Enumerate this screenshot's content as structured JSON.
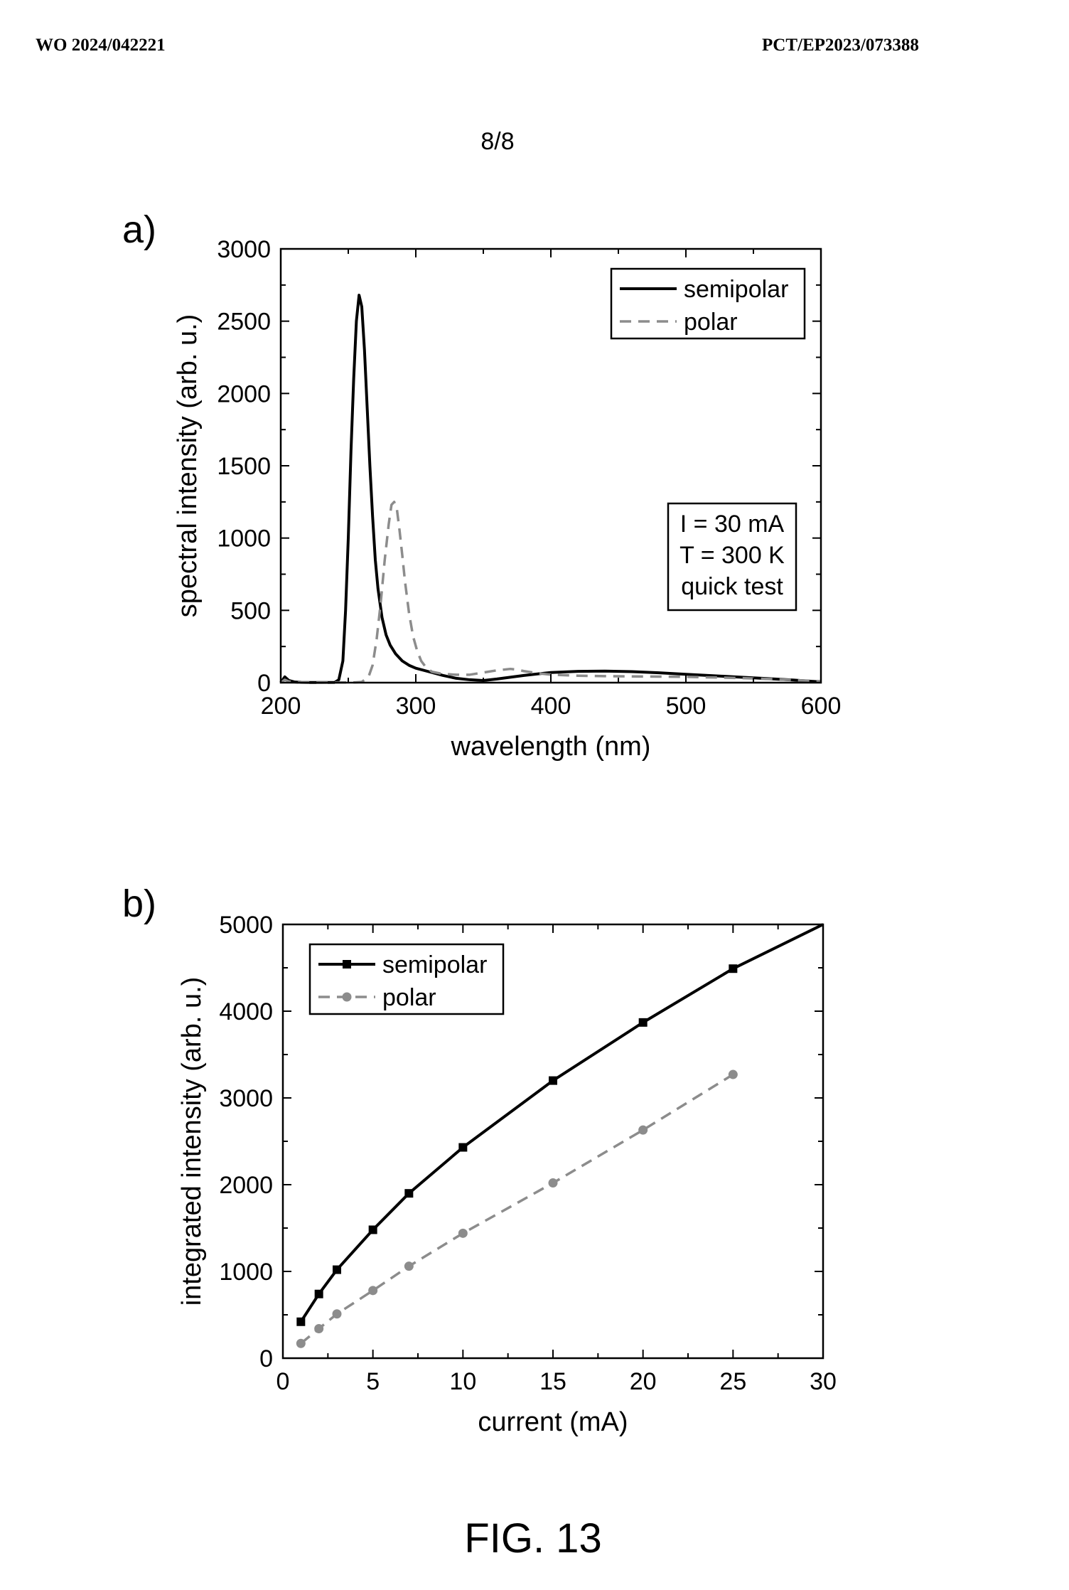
{
  "header": {
    "left": "WO 2024/042221",
    "right": "PCT/EP2023/073388"
  },
  "page_number": "8/8",
  "figure_caption": "FIG. 13",
  "chart_data": [
    {
      "panel_label": "a)",
      "type": "line",
      "xlabel": "wavelength (nm)",
      "ylabel": "spectral intensity (arb. u.)",
      "xlim": [
        200,
        600
      ],
      "ylim": [
        0,
        3000
      ],
      "xticks": [
        200,
        300,
        400,
        500,
        600
      ],
      "yticks": [
        0,
        500,
        1000,
        1500,
        2000,
        2500,
        3000
      ],
      "legend_position": "top-right",
      "annotation": [
        "I = 30 mA",
        "T = 300 K",
        "quick test"
      ],
      "series": [
        {
          "name": "semipolar",
          "color": "#000000",
          "style": "solid",
          "x": [
            200,
            203,
            206,
            210,
            215,
            220,
            230,
            240,
            243,
            246,
            248,
            250,
            252,
            254,
            256,
            258,
            260,
            262,
            264,
            266,
            268,
            270,
            272,
            275,
            278,
            281,
            285,
            290,
            295,
            300,
            310,
            320,
            330,
            340,
            350,
            360,
            380,
            400,
            420,
            440,
            460,
            480,
            500,
            520,
            540,
            560,
            580,
            600
          ],
          "y": [
            0,
            40,
            15,
            5,
            2,
            1,
            1,
            2,
            20,
            150,
            500,
            1000,
            1600,
            2100,
            2500,
            2680,
            2600,
            2300,
            1900,
            1500,
            1150,
            850,
            650,
            450,
            330,
            260,
            200,
            150,
            120,
            100,
            75,
            50,
            30,
            20,
            15,
            25,
            50,
            70,
            78,
            80,
            76,
            68,
            58,
            48,
            38,
            28,
            18,
            5
          ]
        },
        {
          "name": "polar",
          "color": "#8c8c8c",
          "style": "dashed",
          "x": [
            200,
            203,
            206,
            210,
            215,
            220,
            230,
            240,
            250,
            255,
            260,
            265,
            268,
            271,
            274,
            277,
            280,
            282,
            284,
            286,
            288,
            290,
            292,
            295,
            298,
            301,
            304,
            308,
            312,
            320,
            330,
            340,
            350,
            360,
            370,
            375,
            380,
            390,
            400,
            420,
            440,
            460,
            480,
            500,
            520,
            540,
            560,
            580,
            600
          ],
          "y": [
            0,
            20,
            8,
            3,
            1,
            1,
            1,
            1,
            1,
            2,
            5,
            40,
            120,
            300,
            550,
            850,
            1100,
            1230,
            1250,
            1200,
            1050,
            880,
            700,
            480,
            320,
            220,
            150,
            100,
            75,
            60,
            55,
            55,
            70,
            85,
            95,
            90,
            80,
            65,
            55,
            48,
            45,
            43,
            42,
            40,
            36,
            32,
            26,
            18,
            10
          ]
        }
      ]
    },
    {
      "panel_label": "b)",
      "type": "line",
      "xlabel": "current (mA)",
      "ylabel": "integrated intensity (arb. u.)",
      "xlim": [
        0,
        30
      ],
      "ylim": [
        0,
        5000
      ],
      "xticks": [
        0,
        5,
        10,
        15,
        20,
        25,
        30
      ],
      "yticks": [
        0,
        1000,
        2000,
        3000,
        4000,
        5000
      ],
      "legend_position": "top-left",
      "series": [
        {
          "name": "semipolar",
          "color": "#000000",
          "style": "solid",
          "marker": "square",
          "x": [
            1,
            2,
            3,
            5,
            7,
            10,
            15,
            20,
            25
          ],
          "y": [
            420,
            740,
            1020,
            1480,
            1900,
            2430,
            3200,
            3870,
            4490
          ],
          "fit_extension": {
            "x": [
              25,
              30
            ],
            "y": [
              4490,
              5000
            ]
          }
        },
        {
          "name": "polar",
          "color": "#8c8c8c",
          "style": "dashed",
          "marker": "circle",
          "x": [
            1,
            2,
            3,
            5,
            7,
            10,
            15,
            20,
            25
          ],
          "y": [
            170,
            340,
            510,
            780,
            1060,
            1440,
            2020,
            2630,
            3270
          ]
        }
      ]
    }
  ]
}
